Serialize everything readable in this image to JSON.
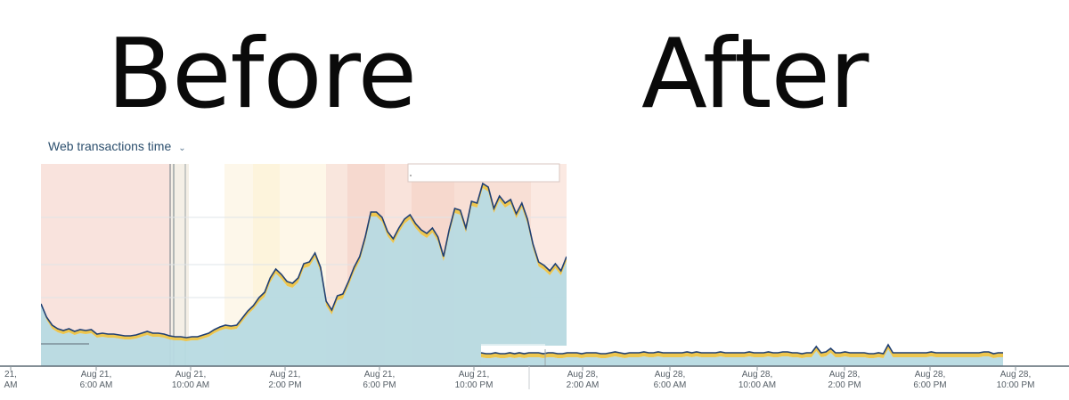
{
  "titles": {
    "before": "Before",
    "after": "After"
  },
  "dropdown": {
    "label": "Web transactions time",
    "icon": "chevron-down-icon"
  },
  "colors": {
    "area_fill": "#b7dae2",
    "area_line": "#1f3f73",
    "band_fill": "#edc64f",
    "baseline": "#5c6a74",
    "grid": "#dfe4e8"
  },
  "chart_data": [
    {
      "type": "area",
      "name": "before",
      "x_ticks": [
        [
          "21,",
          "AM"
        ],
        [
          "Aug 21,",
          "6:00 AM"
        ],
        [
          "Aug 21,",
          "10:00 AM"
        ],
        [
          "Aug 21,",
          "2:00 PM"
        ],
        [
          "Aug 21,",
          "6:00 PM"
        ],
        [
          "Aug 21,",
          "10:00 PM"
        ]
      ],
      "y": [
        70,
        52,
        42,
        38,
        36,
        38,
        35,
        37,
        36,
        37,
        32,
        33,
        32,
        32,
        31,
        30,
        30,
        31,
        33,
        35,
        33,
        33,
        32,
        30,
        29,
        29,
        28,
        29,
        29,
        31,
        33,
        37,
        40,
        42,
        41,
        42,
        50,
        58,
        64,
        72,
        78,
        94,
        104,
        98,
        90,
        88,
        94,
        110,
        112,
        122,
        106,
        68,
        58,
        74,
        76,
        90,
        106,
        118,
        140,
        168,
        168,
        162,
        146,
        138,
        150,
        160,
        165,
        155,
        148,
        144,
        150,
        140,
        118,
        148,
        172,
        170,
        150,
        180,
        178,
        200,
        196,
        172,
        186,
        178,
        182,
        166,
        178,
        160,
        132,
        112,
        108,
        102,
        110,
        102,
        118
      ],
      "band": [
        0,
        3,
        4,
        4,
        4,
        4,
        4,
        4,
        4,
        4,
        4,
        4,
        4,
        4,
        4,
        4,
        4,
        4,
        4,
        4,
        4,
        4,
        4,
        4,
        4,
        4,
        4,
        4,
        4,
        4,
        4,
        4,
        4,
        4,
        4,
        4,
        4,
        4,
        4,
        5,
        5,
        5,
        5,
        5,
        5,
        5,
        5,
        5,
        5,
        5,
        5,
        5,
        5,
        5,
        5,
        5,
        5,
        5,
        5,
        5,
        5,
        5,
        5,
        5,
        5,
        5,
        5,
        5,
        5,
        5,
        5,
        5,
        5,
        5,
        5,
        5,
        5,
        5,
        5,
        5,
        5,
        5,
        5,
        5,
        5,
        5,
        5,
        5,
        5,
        5,
        5,
        5,
        5,
        5,
        5
      ],
      "ylim": [
        0,
        220
      ]
    },
    {
      "type": "area",
      "name": "after",
      "x_ticks": [
        [
          "Aug 28,",
          "2:00 AM"
        ],
        [
          "Aug 28,",
          "6:00 AM"
        ],
        [
          "Aug 28,",
          "10:00 AM"
        ],
        [
          "Aug 28,",
          "2:00 PM"
        ],
        [
          "Aug 28,",
          "6:00 PM"
        ],
        [
          "Aug 28,",
          "10:00 PM"
        ]
      ],
      "y": [
        10,
        9,
        9,
        10,
        9,
        9,
        10,
        9,
        10,
        9,
        10,
        10,
        10,
        9,
        10,
        10,
        9,
        9,
        10,
        10,
        10,
        9,
        10,
        10,
        10,
        9,
        9,
        10,
        11,
        10,
        9,
        10,
        10,
        10,
        11,
        10,
        10,
        11,
        10,
        10,
        10,
        10,
        10,
        11,
        10,
        11,
        10,
        10,
        10,
        10,
        11,
        10,
        10,
        10,
        10,
        10,
        11,
        10,
        10,
        10,
        11,
        10,
        10,
        11,
        11,
        10,
        10,
        9,
        10,
        10,
        17,
        10,
        11,
        15,
        10,
        10,
        11,
        10,
        10,
        10,
        10,
        9,
        9,
        10,
        9,
        19,
        10,
        10,
        10,
        10,
        10,
        10,
        10,
        10,
        11,
        10,
        10,
        10,
        10,
        10,
        10,
        10,
        10,
        10,
        10,
        11,
        11,
        9,
        10,
        10
      ],
      "band": [
        5,
        5,
        5,
        5,
        5,
        5,
        5,
        5,
        5,
        5,
        5,
        5,
        5,
        5,
        5,
        5,
        5,
        5,
        5,
        5,
        5,
        5,
        5,
        5,
        5,
        5,
        5,
        5,
        5,
        5,
        5,
        5,
        5,
        5,
        5,
        5,
        5,
        5,
        5,
        5,
        5,
        5,
        5,
        5,
        5,
        5,
        5,
        5,
        5,
        5,
        5,
        5,
        5,
        5,
        5,
        5,
        5,
        5,
        5,
        5,
        5,
        5,
        5,
        5,
        5,
        5,
        5,
        5,
        5,
        5,
        5,
        5,
        5,
        5,
        5,
        5,
        5,
        5,
        5,
        5,
        5,
        5,
        5,
        5,
        5,
        5,
        5,
        5,
        5,
        5,
        5,
        5,
        5,
        5,
        5,
        5,
        5,
        5,
        5,
        5,
        5,
        5,
        5,
        5,
        5,
        5,
        5,
        5,
        5,
        5
      ],
      "ylim": [
        0,
        220
      ]
    }
  ]
}
